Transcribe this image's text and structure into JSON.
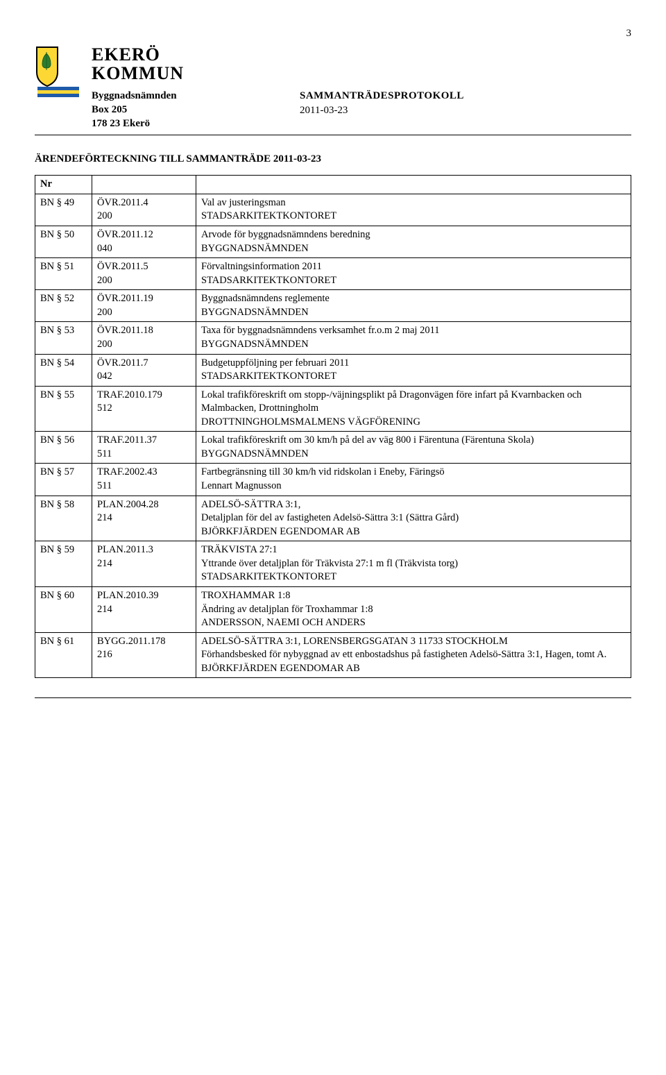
{
  "page_number": "3",
  "org_line1": "EKERÖ",
  "org_line2": "KOMMUN",
  "sender": {
    "name": "Byggnadsnämnden",
    "box": "Box 205",
    "post": "178 23 Ekerö"
  },
  "doc": {
    "title": "SAMMANTRÄDESPROTOKOLL",
    "date": "2011-03-23"
  },
  "section_title": "ÄRENDEFÖRTECKNING TILL SAMMANTRÄDE 2011-03-23",
  "header_nr": "Nr",
  "logo_colors": {
    "shield_border": "#000000",
    "shield_field": "#fdd835",
    "leaf": "#2e7d32",
    "band_blue": "#1e5aa8",
    "band_yellow": "#fdd835"
  },
  "rows": [
    {
      "nr": "BN § 49",
      "ref1": "ÖVR.2011.4",
      "ref2": "200",
      "desc": [
        "Val av justeringsman",
        "STADSARKITEKTKONTORET"
      ]
    },
    {
      "nr": "BN § 50",
      "ref1": "ÖVR.2011.12",
      "ref2": "040",
      "desc": [
        "Arvode för byggnadsnämndens beredning",
        "BYGGNADSNÄMNDEN"
      ]
    },
    {
      "nr": "BN § 51",
      "ref1": "ÖVR.2011.5",
      "ref2": "200",
      "desc": [
        "Förvaltningsinformation 2011",
        "STADSARKITEKTKONTORET"
      ]
    },
    {
      "nr": "BN § 52",
      "ref1": "ÖVR.2011.19",
      "ref2": "200",
      "desc": [
        "Byggnadsnämndens reglemente",
        "BYGGNADSNÄMNDEN"
      ]
    },
    {
      "nr": "BN § 53",
      "ref1": "ÖVR.2011.18",
      "ref2": "200",
      "desc": [
        "Taxa för byggnadsnämndens verksamhet fr.o.m 2 maj 2011",
        "BYGGNADSNÄMNDEN"
      ]
    },
    {
      "nr": "BN § 54",
      "ref1": "ÖVR.2011.7",
      "ref2": "042",
      "desc": [
        "Budgetuppföljning per februari 2011",
        "STADSARKITEKTKONTORET"
      ]
    },
    {
      "nr": "BN § 55",
      "ref1": "TRAF.2010.179",
      "ref2": "512",
      "desc": [
        "Lokal trafikföreskrift om stopp-/väjningsplikt på Dragonvägen före infart på Kvarnbacken och Malmbacken, Drottningholm",
        "DROTTNINGHOLMSMALMENS VÄGFÖRENING"
      ]
    },
    {
      "nr": "BN § 56",
      "ref1": "TRAF.2011.37",
      "ref2": "511",
      "desc": [
        "Lokal trafikföreskrift om 30 km/h på del av väg 800 i Färentuna (Färentuna Skola)",
        "BYGGNADSNÄMNDEN"
      ]
    },
    {
      "nr": "BN § 57",
      "ref1": "TRAF.2002.43",
      "ref2": "511",
      "desc": [
        "Fartbegränsning till 30 km/h vid ridskolan i Eneby, Färingsö",
        "Lennart Magnusson"
      ]
    },
    {
      "nr": "BN § 58",
      "ref1": "PLAN.2004.28",
      "ref2": "214",
      "desc": [
        "ADELSÖ-SÄTTRA 3:1,",
        "Detaljplan för del av fastigheten Adelsö-Sättra 3:1 (Sättra Gård)",
        "BJÖRKFJÄRDEN EGENDOMAR AB"
      ]
    },
    {
      "nr": "BN § 59",
      "ref1": "PLAN.2011.3",
      "ref2": "214",
      "desc": [
        "TRÄKVISTA 27:1",
        " Yttrande över detaljplan för Träkvista 27:1 m fl (Träkvista torg)",
        "STADSARKITEKTKONTORET"
      ]
    },
    {
      "nr": "BN § 60",
      "ref1": "PLAN.2010.39",
      "ref2": "214",
      "desc": [
        "TROXHAMMAR 1:8",
        "Ändring av detaljplan för Troxhammar 1:8",
        "ANDERSSON, NAEMI OCH ANDERS"
      ]
    },
    {
      "nr": "BN § 61",
      "ref1": "BYGG.2011.178",
      "ref2": "216",
      "desc": [
        "ADELSÖ-SÄTTRA 3:1, LORENSBERGSGATAN 3 11733 STOCKHOLM",
        "Förhandsbesked för nybyggnad av ett enbostadshus på fastigheten Adelsö-Sättra 3:1, Hagen, tomt A.",
        "BJÖRKFJÄRDEN EGENDOMAR AB"
      ]
    }
  ]
}
